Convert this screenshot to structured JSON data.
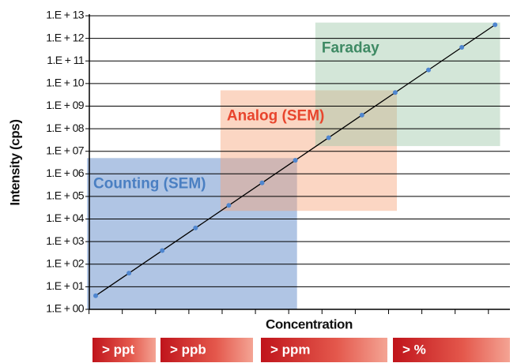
{
  "chart_data": {
    "type": "line",
    "x_label": "Concentration",
    "y_label": "Intensity (cps)",
    "categories": [
      null,
      null,
      null,
      null,
      null,
      null,
      null,
      null,
      null,
      null,
      null,
      null,
      null
    ],
    "series": [
      {
        "color": "#4f86cf",
        "line_color": "#000000",
        "values": [
          4,
          40,
          400,
          4000,
          40000,
          400000,
          4000000,
          40000000,
          400000000,
          4000000000,
          40000000000,
          400000000000,
          4000000000000
        ]
      }
    ],
    "log_y": true,
    "grid": true,
    "ylim": [
      1,
      10000000000000
    ],
    "yticks": [
      {
        "value": 1,
        "label": "1.E + 00"
      },
      {
        "value": 10,
        "label": "1.E + 01"
      },
      {
        "value": 100,
        "label": "1.E + 02"
      },
      {
        "value": 1000,
        "label": "1.E + 03"
      },
      {
        "value": 10000,
        "label": "1.E + 04"
      },
      {
        "value": 100000,
        "label": "1.E + 05"
      },
      {
        "value": 1000000,
        "label": "1.E + 06"
      },
      {
        "value": 10000000,
        "label": "1.E + 07"
      },
      {
        "value": 100000000,
        "label": "1.E + 08"
      },
      {
        "value": 1000000000,
        "label": "1.E + 09"
      },
      {
        "value": 10000000000,
        "label": "1.E + 10"
      },
      {
        "value": 100000000000,
        "label": "1.E + 11"
      },
      {
        "value": 1000000000000,
        "label": "1.E + 12"
      },
      {
        "value": 10000000000000,
        "label": "1.E + 13"
      }
    ],
    "regions": [
      {
        "label": "Counting (SEM)",
        "color": "#4f7fc4",
        "text_color": "#4a7fc2",
        "x_span": [
          -0.26,
          6.05
        ],
        "y_span": [
          1,
          5000000
        ]
      },
      {
        "label": "Analog (SEM)",
        "color": "#f7a37a",
        "text_color": "#e8452d",
        "x_span": [
          3.75,
          9.05
        ],
        "y_span": [
          23000,
          5000000000
        ]
      },
      {
        "label": "Faraday",
        "color": "#9ec7a8",
        "text_color": "#3f8a64",
        "x_span": [
          6.6,
          12.15
        ],
        "y_span": [
          17000000,
          5000000000000
        ]
      }
    ],
    "concentration_ranges": [
      "> ppt",
      "> ppb",
      "> ppm",
      "> %"
    ]
  }
}
